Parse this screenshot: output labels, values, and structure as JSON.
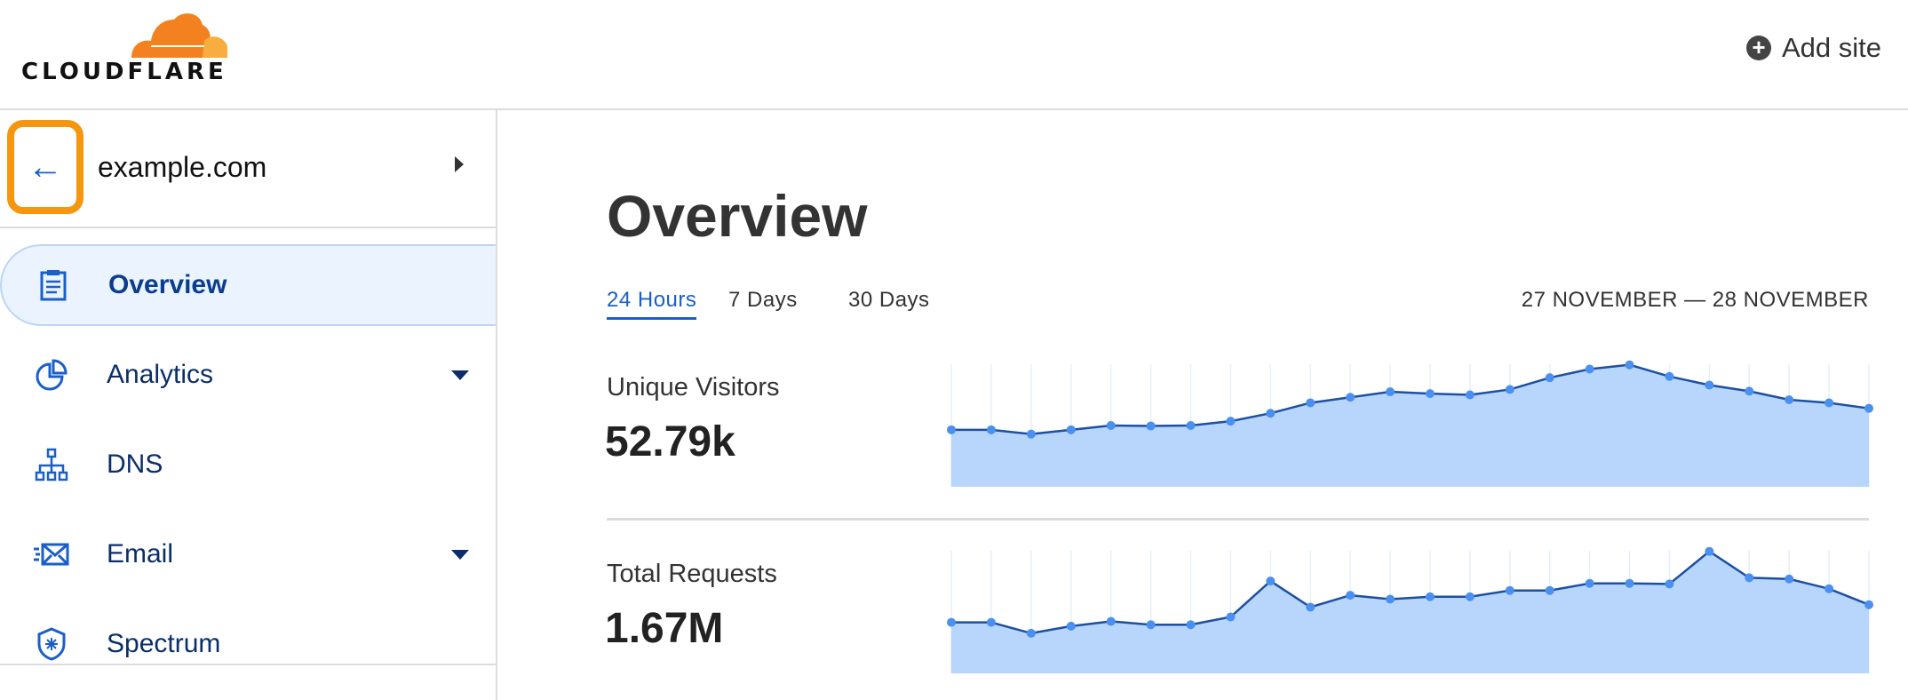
{
  "header": {
    "logo": "CLOUDFLARE",
    "add_site": "Add site",
    "colors": {
      "logo_orange": "#f48120",
      "logo_light": "#faad3f"
    }
  },
  "sidebar": {
    "domain": "example.com",
    "back_icon": "arrow-left-icon",
    "highlight_color": "#f6950e",
    "items": [
      {
        "label": "Overview",
        "icon": "clipboard-icon",
        "active": true,
        "dropdown": false
      },
      {
        "label": "Analytics",
        "icon": "pie-chart-icon",
        "active": false,
        "dropdown": true
      },
      {
        "label": "DNS",
        "icon": "network-icon",
        "active": false,
        "dropdown": false
      },
      {
        "label": "Email",
        "icon": "envelope-icon",
        "active": false,
        "dropdown": true
      },
      {
        "label": "Spectrum",
        "icon": "shield-icon",
        "active": false,
        "dropdown": false
      }
    ]
  },
  "main": {
    "title": "Overview",
    "tabs": [
      {
        "label": "24 Hours",
        "active": true
      },
      {
        "label": "7 Days"
      },
      {
        "label": "30 Days"
      }
    ],
    "date_range": "27 NOVEMBER — 28 NOVEMBER",
    "metrics": [
      {
        "label": "Unique Visitors",
        "value": "52.79k"
      },
      {
        "label": "Total Requests",
        "value": "1.67M"
      }
    ]
  },
  "chart_data": [
    {
      "type": "area",
      "grid": "vertical",
      "axes": "none",
      "fill": "#b8d6fb",
      "line": "#1d4fa3",
      "point": "#4a90f0",
      "values": [
        46.5,
        46.5,
        43,
        46.5,
        50,
        49.6,
        50,
        53.5,
        60,
        68.5,
        73,
        77.5,
        76,
        75,
        79.4,
        89,
        96,
        99.5,
        90,
        83,
        78,
        71,
        68.5,
        64
      ]
    },
    {
      "type": "area",
      "grid": "vertical",
      "axes": "none",
      "fill": "#b8d6fb",
      "line": "#1d4fa3",
      "point": "#4a90f0",
      "values": [
        41.6,
        41.6,
        32.7,
        38.5,
        42.4,
        39.7,
        39.7,
        46,
        75.3,
        54,
        63.7,
        60.5,
        62.5,
        62.5,
        67.6,
        67.6,
        73.4,
        73.4,
        72.9,
        99.5,
        78,
        77,
        69,
        56
      ]
    }
  ]
}
